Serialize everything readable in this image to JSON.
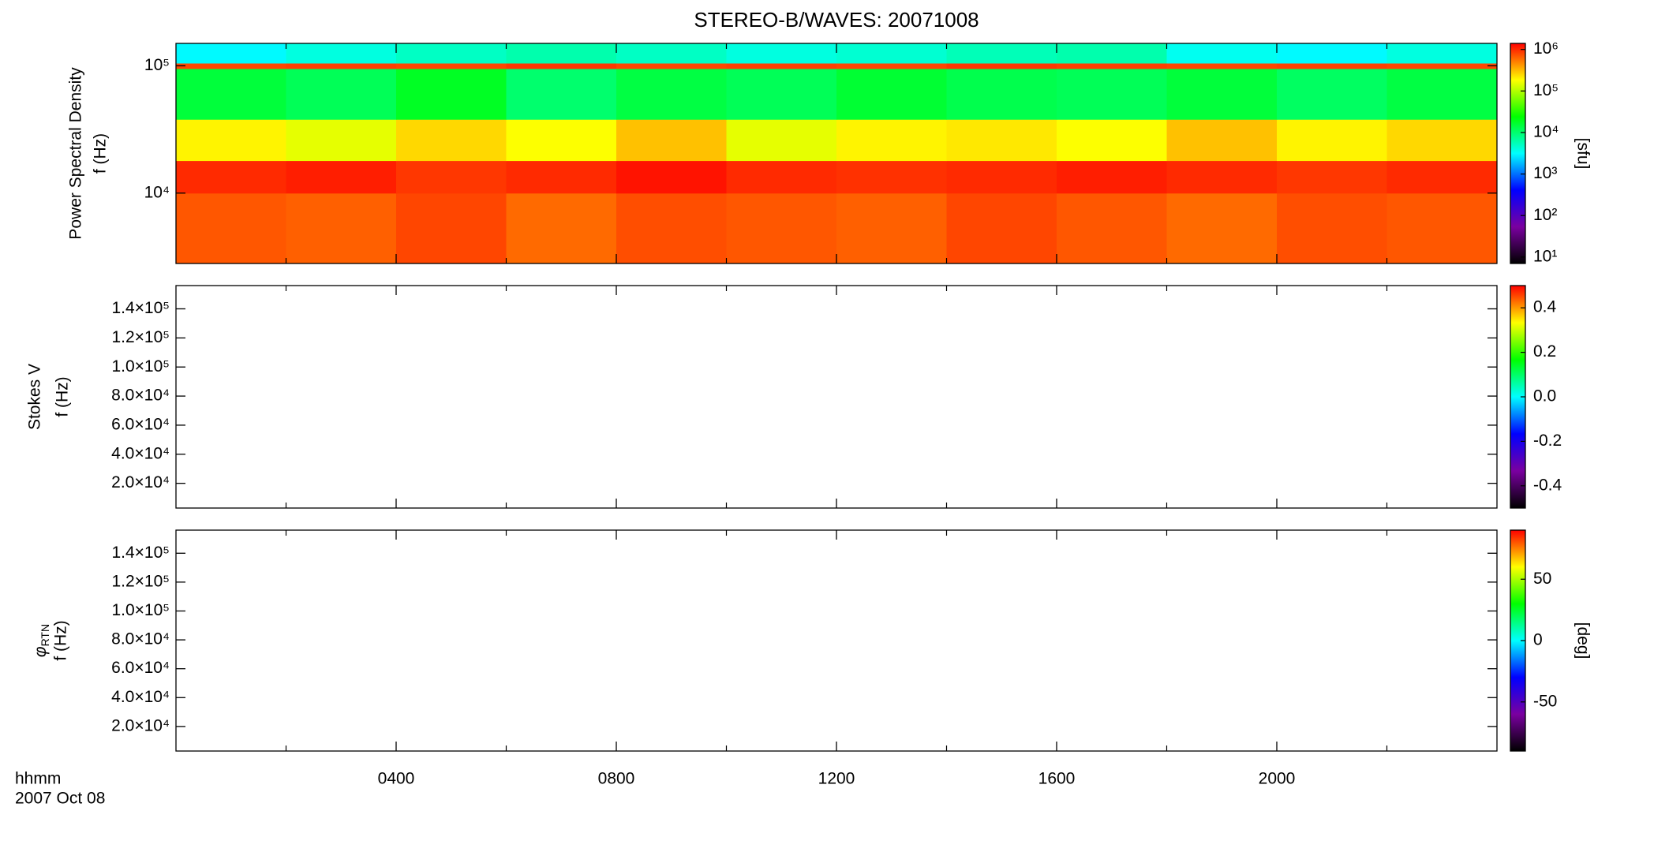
{
  "chart_data": [
    {
      "type": "heatmap",
      "title": "STEREO-B/WAVES: 20071008",
      "ylabel": [
        "Power Spectral Density",
        "f (Hz)"
      ],
      "ylog": true,
      "ylim": [
        2800,
        150000
      ],
      "yticks": [
        {
          "value": 10000,
          "label": "10⁴"
        },
        {
          "value": 100000,
          "label": "10⁵"
        }
      ],
      "xlim": [
        0,
        24
      ],
      "xbins": [
        0,
        2,
        4,
        6,
        8,
        10,
        12,
        14,
        16,
        18,
        20,
        22,
        24
      ],
      "ybins": [
        2800,
        10000,
        18000,
        38000,
        95000,
        105000,
        150000
      ],
      "z": [
        [
          700000,
          650000,
          800000,
          600000,
          750000,
          700000,
          650000,
          800000,
          700000,
          600000,
          750000,
          700000
        ],
        [
          1000000,
          1100000,
          900000,
          1000000,
          1200000,
          1000000,
          950000,
          1000000,
          1100000,
          1000000,
          900000,
          1000000
        ],
        [
          200000,
          150000,
          250000,
          180000,
          300000,
          150000,
          200000,
          220000,
          180000,
          300000,
          200000,
          250000
        ],
        [
          15000,
          12000,
          18000,
          10000,
          14000,
          12000,
          16000,
          13000,
          12000,
          15000,
          11000,
          14000
        ],
        [
          800000,
          850000,
          800000,
          900000,
          800000,
          850000,
          800000,
          900000,
          850000,
          800000,
          850000,
          800000
        ],
        [
          3000,
          4000,
          5000,
          6000,
          5000,
          4000,
          4500,
          5500,
          6000,
          3500,
          3000,
          4000
        ]
      ],
      "colormap": [
        "#000000",
        "#7a00a0",
        "#0000ff",
        "#00ffff",
        "#00ff00",
        "#ffff00",
        "#ff0000"
      ],
      "clog": true,
      "clim": [
        7,
        1400000
      ],
      "cticks": [
        {
          "value": 10,
          "label": "10¹"
        },
        {
          "value": 100,
          "label": "10²"
        },
        {
          "value": 1000,
          "label": "10³"
        },
        {
          "value": 10000,
          "label": "10⁴"
        },
        {
          "value": 100000,
          "label": "10⁵"
        },
        {
          "value": 1000000,
          "label": "10⁶"
        }
      ],
      "clabel": "[sfu]"
    },
    {
      "type": "heatmap",
      "ylabel": [
        "Stokes V",
        "f (Hz)"
      ],
      "ylog": false,
      "ylim": [
        3000,
        156000
      ],
      "yticks": [
        {
          "value": 20000,
          "label": "2.0×10⁴"
        },
        {
          "value": 40000,
          "label": "4.0×10⁴"
        },
        {
          "value": 60000,
          "label": "6.0×10⁴"
        },
        {
          "value": 80000,
          "label": "8.0×10⁴"
        },
        {
          "value": 100000,
          "label": "1.0×10⁵"
        },
        {
          "value": 120000,
          "label": "1.2×10⁵"
        },
        {
          "value": 140000,
          "label": "1.4×10⁵"
        }
      ],
      "xlim": [
        0,
        24
      ],
      "colormap": [
        "#000000",
        "#7a00a0",
        "#0000ff",
        "#00ffff",
        "#00ff00",
        "#ffff00",
        "#ff0000"
      ],
      "clog": false,
      "clim": [
        -0.5,
        0.5
      ],
      "cticks": [
        -0.4,
        -0.2,
        {
          "value": 0,
          "label": "0.0"
        },
        0.2,
        0.4
      ]
    },
    {
      "type": "heatmap",
      "ylabel": [
        {
          "symbol": "φ",
          "subscript": "RTN"
        },
        "f (Hz)"
      ],
      "ylog": false,
      "ylim": [
        3000,
        156000
      ],
      "yticks": [
        {
          "value": 20000,
          "label": "2.0×10⁴"
        },
        {
          "value": 40000,
          "label": "4.0×10⁴"
        },
        {
          "value": 60000,
          "label": "6.0×10⁴"
        },
        {
          "value": 80000,
          "label": "8.0×10⁴"
        },
        {
          "value": 100000,
          "label": "1.0×10⁵"
        },
        {
          "value": 120000,
          "label": "1.2×10⁵"
        },
        {
          "value": 140000,
          "label": "1.4×10⁵"
        }
      ],
      "xlim": [
        0,
        24
      ],
      "xticks": [
        {
          "value": 4,
          "label": "0400"
        },
        {
          "value": 8,
          "label": "0800"
        },
        {
          "value": 12,
          "label": "1200"
        },
        {
          "value": 16,
          "label": "1600"
        },
        {
          "value": 20,
          "label": "2000"
        }
      ],
      "xminor": [
        2,
        6,
        10,
        14,
        18,
        22
      ],
      "xlabel": [
        "hhmm",
        "2007 Oct 08"
      ],
      "colormap": [
        "#000000",
        "#7a00a0",
        "#0000ff",
        "#00ffff",
        "#00ff00",
        "#ffff00",
        "#ff0000"
      ],
      "clog": false,
      "clim": [
        -90,
        90
      ],
      "cticks": [
        -50,
        0,
        50
      ],
      "clabel": "[deg]"
    }
  ]
}
